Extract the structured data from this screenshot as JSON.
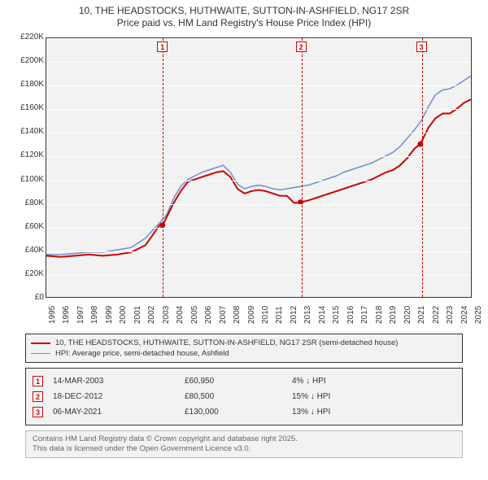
{
  "title": {
    "line1": "10, THE HEADSTOCKS, HUTHWAITE, SUTTON-IN-ASHFIELD, NG17 2SR",
    "line2": "Price paid vs. HM Land Registry's House Price Index (HPI)",
    "fontsize": 12,
    "color": "#333333"
  },
  "chart": {
    "type": "line",
    "background_color": "#f2f2f2",
    "grid_color": "#ffffff",
    "axis_color": "#333333",
    "tick_fontsize": 10,
    "y": {
      "min": 0,
      "max": 220000,
      "step": 20000,
      "labels": [
        "£0",
        "£20K",
        "£40K",
        "£60K",
        "£80K",
        "£100K",
        "£120K",
        "£140K",
        "£160K",
        "£180K",
        "£200K",
        "£220K"
      ]
    },
    "x": {
      "start_year": 1995,
      "end_year": 2025,
      "labels": [
        "1995",
        "1996",
        "1997",
        "1998",
        "1999",
        "2000",
        "2001",
        "2002",
        "2003",
        "2004",
        "2005",
        "2006",
        "2007",
        "2008",
        "2009",
        "2010",
        "2011",
        "2012",
        "2013",
        "2014",
        "2015",
        "2016",
        "2017",
        "2018",
        "2019",
        "2020",
        "2021",
        "2022",
        "2023",
        "2024",
        "2025"
      ]
    },
    "series": [
      {
        "name": "10, THE HEADSTOCKS, HUTHWAITE, SUTTON-IN-ASHFIELD, NG17 2SR (semi-detached house)",
        "color": "#cc0000",
        "width": 2,
        "data": [
          [
            1995,
            35000
          ],
          [
            1996,
            34000
          ],
          [
            1997,
            35000
          ],
          [
            1998,
            36000
          ],
          [
            1999,
            35000
          ],
          [
            2000,
            36000
          ],
          [
            2001,
            38000
          ],
          [
            2002,
            44000
          ],
          [
            2003,
            60950
          ],
          [
            2003.3,
            63000
          ],
          [
            2004,
            80000
          ],
          [
            2004.5,
            90000
          ],
          [
            2005,
            98000
          ],
          [
            2005.5,
            100000
          ],
          [
            2006,
            102000
          ],
          [
            2006.5,
            104000
          ],
          [
            2007,
            106000
          ],
          [
            2007.5,
            107000
          ],
          [
            2008,
            102000
          ],
          [
            2008.5,
            92000
          ],
          [
            2009,
            88000
          ],
          [
            2009.5,
            90000
          ],
          [
            2010,
            91000
          ],
          [
            2010.5,
            90000
          ],
          [
            2011,
            88000
          ],
          [
            2011.5,
            86000
          ],
          [
            2012,
            86000
          ],
          [
            2012.5,
            80000
          ],
          [
            2012.96,
            80500
          ],
          [
            2013.5,
            82000
          ],
          [
            2014,
            84000
          ],
          [
            2014.5,
            86000
          ],
          [
            2015,
            88000
          ],
          [
            2015.5,
            90000
          ],
          [
            2016,
            92000
          ],
          [
            2016.5,
            94000
          ],
          [
            2017,
            96000
          ],
          [
            2017.5,
            98000
          ],
          [
            2018,
            100000
          ],
          [
            2018.5,
            103000
          ],
          [
            2019,
            106000
          ],
          [
            2019.5,
            108000
          ],
          [
            2020,
            112000
          ],
          [
            2020.5,
            118000
          ],
          [
            2021,
            126000
          ],
          [
            2021.43,
            130000
          ],
          [
            2022,
            144000
          ],
          [
            2022.5,
            152000
          ],
          [
            2023,
            156000
          ],
          [
            2023.5,
            156000
          ],
          [
            2024,
            160000
          ],
          [
            2024.5,
            165000
          ],
          [
            2025,
            168000
          ]
        ],
        "markers": [
          {
            "x": 2003.2,
            "y": 60950
          },
          {
            "x": 2012.96,
            "y": 80500
          },
          {
            "x": 2021.43,
            "y": 130000
          }
        ]
      },
      {
        "name": "HPI: Average price, semi-detached house, Ashfield",
        "color": "#6b8fc9",
        "width": 1.5,
        "data": [
          [
            1995,
            36000
          ],
          [
            1996,
            36000
          ],
          [
            1997,
            37000
          ],
          [
            1998,
            38000
          ],
          [
            1999,
            38000
          ],
          [
            2000,
            40000
          ],
          [
            2001,
            42000
          ],
          [
            2002,
            50000
          ],
          [
            2003,
            63000
          ],
          [
            2003.5,
            70000
          ],
          [
            2004,
            84000
          ],
          [
            2004.5,
            94000
          ],
          [
            2005,
            100000
          ],
          [
            2005.5,
            103000
          ],
          [
            2006,
            106000
          ],
          [
            2006.5,
            108000
          ],
          [
            2007,
            110000
          ],
          [
            2007.5,
            112000
          ],
          [
            2008,
            106000
          ],
          [
            2008.5,
            96000
          ],
          [
            2009,
            92000
          ],
          [
            2009.5,
            94000
          ],
          [
            2010,
            95000
          ],
          [
            2010.5,
            94000
          ],
          [
            2011,
            92000
          ],
          [
            2011.5,
            91000
          ],
          [
            2012,
            92000
          ],
          [
            2012.5,
            93000
          ],
          [
            2013,
            94000
          ],
          [
            2013.5,
            95000
          ],
          [
            2014,
            97000
          ],
          [
            2014.5,
            99000
          ],
          [
            2015,
            101000
          ],
          [
            2015.5,
            103000
          ],
          [
            2016,
            106000
          ],
          [
            2016.5,
            108000
          ],
          [
            2017,
            110000
          ],
          [
            2017.5,
            112000
          ],
          [
            2018,
            114000
          ],
          [
            2018.5,
            117000
          ],
          [
            2019,
            120000
          ],
          [
            2019.5,
            123000
          ],
          [
            2020,
            128000
          ],
          [
            2020.5,
            135000
          ],
          [
            2021,
            142000
          ],
          [
            2021.5,
            150000
          ],
          [
            2022,
            162000
          ],
          [
            2022.5,
            172000
          ],
          [
            2023,
            176000
          ],
          [
            2023.5,
            177000
          ],
          [
            2024,
            180000
          ],
          [
            2024.5,
            184000
          ],
          [
            2025,
            188000
          ]
        ]
      }
    ],
    "vlines": [
      {
        "num": "1",
        "year": 2003.2
      },
      {
        "num": "2",
        "year": 2012.96
      },
      {
        "num": "3",
        "year": 2021.43
      }
    ]
  },
  "legend": {
    "items": [
      {
        "color": "#cc0000",
        "width": 2,
        "label": "10, THE HEADSTOCKS, HUTHWAITE, SUTTON-IN-ASHFIELD, NG17 2SR (semi-detached house)"
      },
      {
        "color": "#6b8fc9",
        "width": 1.5,
        "label": "HPI: Average price, semi-detached house, Ashfield"
      }
    ]
  },
  "events": {
    "rows": [
      {
        "num": "1",
        "date": "14-MAR-2003",
        "price": "£60,950",
        "diff": "4% ↓ HPI"
      },
      {
        "num": "2",
        "date": "18-DEC-2012",
        "price": "£80,500",
        "diff": "15% ↓ HPI"
      },
      {
        "num": "3",
        "date": "06-MAY-2021",
        "price": "£130,000",
        "diff": "13% ↓ HPI"
      }
    ]
  },
  "attribution": {
    "line1": "Contains HM Land Registry data © Crown copyright and database right 2025.",
    "line2": "This data is licensed under the Open Government Licence v3.0."
  }
}
